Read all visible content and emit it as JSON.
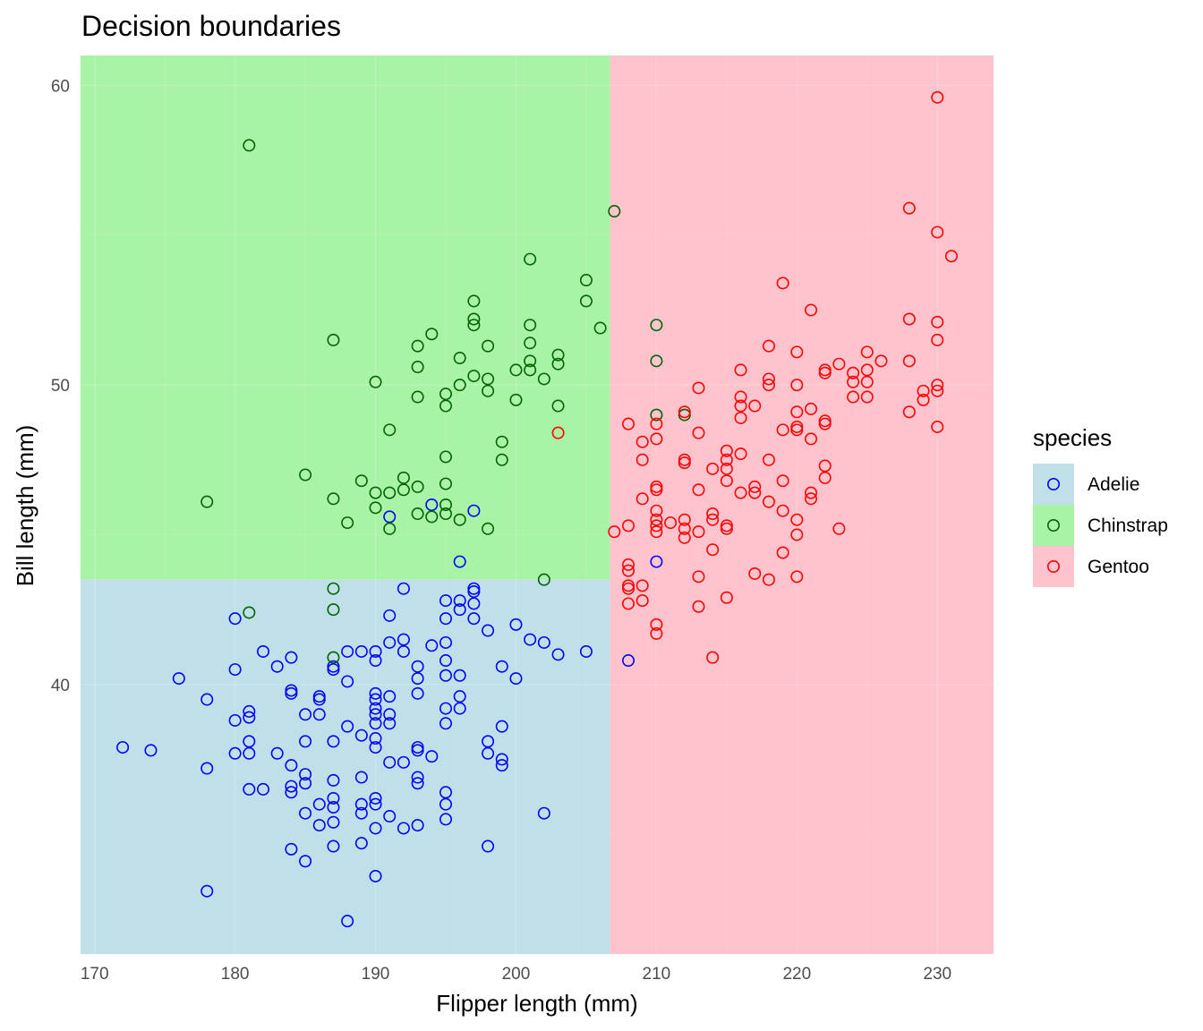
{
  "chart_data": {
    "type": "scatter",
    "title": "Decision boundaries",
    "xlabel": "Flipper length (mm)",
    "ylabel": "Bill length (mm)",
    "xlim": [
      169,
      234
    ],
    "ylim": [
      31,
      61
    ],
    "xticks": [
      170,
      180,
      190,
      200,
      210,
      220,
      230
    ],
    "yticks": [
      40,
      50,
      60
    ],
    "grid": true,
    "legend": {
      "title": "species",
      "position": "right"
    },
    "colors": {
      "Adelie": {
        "point": "#0000ff",
        "region": "#bfe0e8"
      },
      "Chinstrap": {
        "point": "#006400",
        "region": "#a9f3a6"
      },
      "Gentoo": {
        "point": "#ff0000",
        "region": "#ffc3cd"
      }
    },
    "regions": [
      {
        "species": "Chinstrap",
        "x": [
          169,
          206.7
        ],
        "y": [
          43.5,
          61
        ]
      },
      {
        "species": "Adelie",
        "x": [
          169,
          206.7
        ],
        "y": [
          31,
          43.5
        ]
      },
      {
        "species": "Gentoo",
        "x": [
          206.7,
          234
        ],
        "y": [
          31,
          61
        ]
      }
    ],
    "series": [
      {
        "name": "Adelie",
        "points": [
          [
            172,
            37.9
          ],
          [
            174,
            37.8
          ],
          [
            176,
            40.2
          ],
          [
            178,
            39.5
          ],
          [
            178,
            37.2
          ],
          [
            178,
            33.1
          ],
          [
            180,
            42.2
          ],
          [
            180,
            40.5
          ],
          [
            180,
            38.8
          ],
          [
            180,
            37.7
          ],
          [
            181,
            39.1
          ],
          [
            181,
            38.9
          ],
          [
            181,
            38.1
          ],
          [
            181,
            37.7
          ],
          [
            181,
            36.5
          ],
          [
            182,
            41.1
          ],
          [
            182,
            36.5
          ],
          [
            183,
            40.6
          ],
          [
            183,
            37.7
          ],
          [
            184,
            40.9
          ],
          [
            184,
            39.8
          ],
          [
            184,
            39.7
          ],
          [
            184,
            37.3
          ],
          [
            184,
            36.6
          ],
          [
            184,
            36.4
          ],
          [
            184,
            34.5
          ],
          [
            185,
            39.0
          ],
          [
            185,
            38.1
          ],
          [
            185,
            37.0
          ],
          [
            185,
            36.7
          ],
          [
            185,
            35.7
          ],
          [
            185,
            34.1
          ],
          [
            186,
            39.6
          ],
          [
            186,
            39.5
          ],
          [
            186,
            39.0
          ],
          [
            186,
            36.0
          ],
          [
            186,
            35.3
          ],
          [
            187,
            40.6
          ],
          [
            187,
            40.5
          ],
          [
            187,
            38.1
          ],
          [
            187,
            36.8
          ],
          [
            187,
            36.2
          ],
          [
            187,
            35.9
          ],
          [
            187,
            35.4
          ],
          [
            187,
            34.6
          ],
          [
            188,
            41.1
          ],
          [
            188,
            40.1
          ],
          [
            188,
            38.6
          ],
          [
            188,
            32.1
          ],
          [
            189,
            41.1
          ],
          [
            189,
            38.3
          ],
          [
            189,
            36.9
          ],
          [
            189,
            36.0
          ],
          [
            189,
            35.7
          ],
          [
            189,
            34.7
          ],
          [
            190,
            41.1
          ],
          [
            190,
            40.8
          ],
          [
            190,
            39.7
          ],
          [
            190,
            39.5
          ],
          [
            190,
            39.2
          ],
          [
            190,
            39.0
          ],
          [
            190,
            38.7
          ],
          [
            190,
            38.2
          ],
          [
            190,
            37.9
          ],
          [
            190,
            36.2
          ],
          [
            190,
            36.0
          ],
          [
            190,
            35.2
          ],
          [
            190,
            33.6
          ],
          [
            191,
            45.6
          ],
          [
            191,
            42.3
          ],
          [
            191,
            41.4
          ],
          [
            191,
            39.6
          ],
          [
            191,
            39.0
          ],
          [
            191,
            38.7
          ],
          [
            191,
            37.4
          ],
          [
            191,
            35.6
          ],
          [
            192,
            43.2
          ],
          [
            192,
            41.5
          ],
          [
            192,
            41.1
          ],
          [
            192,
            37.4
          ],
          [
            192,
            35.2
          ],
          [
            193,
            40.6
          ],
          [
            193,
            40.2
          ],
          [
            193,
            39.7
          ],
          [
            193,
            37.9
          ],
          [
            193,
            37.8
          ],
          [
            193,
            36.9
          ],
          [
            193,
            36.7
          ],
          [
            193,
            35.3
          ],
          [
            194,
            46.0
          ],
          [
            194,
            41.3
          ],
          [
            194,
            37.6
          ],
          [
            195,
            42.8
          ],
          [
            195,
            42.2
          ],
          [
            195,
            41.4
          ],
          [
            195,
            40.8
          ],
          [
            195,
            40.3
          ],
          [
            195,
            39.2
          ],
          [
            195,
            38.7
          ],
          [
            195,
            36.4
          ],
          [
            195,
            36.0
          ],
          [
            195,
            35.5
          ],
          [
            196,
            44.1
          ],
          [
            196,
            42.8
          ],
          [
            196,
            42.5
          ],
          [
            196,
            40.3
          ],
          [
            196,
            39.6
          ],
          [
            196,
            39.2
          ],
          [
            197,
            45.8
          ],
          [
            197,
            43.2
          ],
          [
            197,
            43.1
          ],
          [
            197,
            42.7
          ],
          [
            197,
            42.2
          ],
          [
            198,
            41.8
          ],
          [
            198,
            38.1
          ],
          [
            198,
            37.7
          ],
          [
            198,
            34.6
          ],
          [
            199,
            40.6
          ],
          [
            199,
            38.6
          ],
          [
            199,
            37.5
          ],
          [
            199,
            37.3
          ],
          [
            200,
            42.0
          ],
          [
            200,
            40.2
          ],
          [
            201,
            41.5
          ],
          [
            202,
            41.4
          ],
          [
            202,
            35.7
          ],
          [
            203,
            41.0
          ],
          [
            205,
            41.1
          ],
          [
            208,
            40.8
          ],
          [
            210,
            44.1
          ]
        ]
      },
      {
        "name": "Chinstrap",
        "points": [
          [
            178,
            46.1
          ],
          [
            181,
            58.0
          ],
          [
            181,
            42.4
          ],
          [
            185,
            47.0
          ],
          [
            187,
            51.5
          ],
          [
            187,
            46.2
          ],
          [
            187,
            43.2
          ],
          [
            187,
            42.5
          ],
          [
            187,
            40.9
          ],
          [
            188,
            45.4
          ],
          [
            189,
            46.8
          ],
          [
            190,
            50.1
          ],
          [
            190,
            46.4
          ],
          [
            190,
            45.9
          ],
          [
            191,
            48.5
          ],
          [
            191,
            46.4
          ],
          [
            191,
            45.2
          ],
          [
            192,
            46.9
          ],
          [
            192,
            46.5
          ],
          [
            193,
            51.3
          ],
          [
            193,
            50.6
          ],
          [
            193,
            49.6
          ],
          [
            193,
            46.6
          ],
          [
            193,
            45.7
          ],
          [
            194,
            51.7
          ],
          [
            194,
            45.6
          ],
          [
            195,
            49.7
          ],
          [
            195,
            49.3
          ],
          [
            195,
            47.6
          ],
          [
            195,
            46.7
          ],
          [
            195,
            46.0
          ],
          [
            195,
            45.7
          ],
          [
            196,
            50.9
          ],
          [
            196,
            50.0
          ],
          [
            196,
            45.5
          ],
          [
            197,
            52.8
          ],
          [
            197,
            52.2
          ],
          [
            197,
            52.0
          ],
          [
            197,
            50.3
          ],
          [
            198,
            51.3
          ],
          [
            198,
            50.2
          ],
          [
            198,
            49.8
          ],
          [
            198,
            45.2
          ],
          [
            199,
            48.1
          ],
          [
            199,
            47.5
          ],
          [
            200,
            50.5
          ],
          [
            200,
            49.5
          ],
          [
            201,
            54.2
          ],
          [
            201,
            52.0
          ],
          [
            201,
            51.4
          ],
          [
            201,
            50.8
          ],
          [
            201,
            50.5
          ],
          [
            202,
            50.2
          ],
          [
            202,
            43.5
          ],
          [
            203,
            51.0
          ],
          [
            203,
            50.7
          ],
          [
            203,
            49.3
          ],
          [
            205,
            53.5
          ],
          [
            205,
            52.8
          ],
          [
            206,
            51.9
          ],
          [
            207,
            55.8
          ],
          [
            210,
            52.0
          ],
          [
            210,
            50.8
          ],
          [
            210,
            49.0
          ],
          [
            212,
            49.0
          ]
        ]
      },
      {
        "name": "Gentoo",
        "points": [
          [
            203,
            48.4
          ],
          [
            207,
            45.1
          ],
          [
            208,
            48.7
          ],
          [
            208,
            45.3
          ],
          [
            208,
            44.0
          ],
          [
            208,
            43.8
          ],
          [
            208,
            43.3
          ],
          [
            208,
            43.2
          ],
          [
            208,
            42.7
          ],
          [
            209,
            48.1
          ],
          [
            209,
            47.5
          ],
          [
            209,
            46.2
          ],
          [
            209,
            43.3
          ],
          [
            209,
            42.8
          ],
          [
            210,
            48.7
          ],
          [
            210,
            48.2
          ],
          [
            210,
            46.6
          ],
          [
            210,
            46.5
          ],
          [
            210,
            45.8
          ],
          [
            210,
            45.5
          ],
          [
            210,
            45.3
          ],
          [
            210,
            45.1
          ],
          [
            210,
            42.0
          ],
          [
            210,
            41.7
          ],
          [
            211,
            45.4
          ],
          [
            212,
            49.1
          ],
          [
            212,
            47.5
          ],
          [
            212,
            47.4
          ],
          [
            212,
            45.5
          ],
          [
            212,
            45.2
          ],
          [
            212,
            44.9
          ],
          [
            213,
            49.9
          ],
          [
            213,
            48.4
          ],
          [
            213,
            46.5
          ],
          [
            213,
            45.1
          ],
          [
            213,
            43.6
          ],
          [
            213,
            42.6
          ],
          [
            214,
            47.2
          ],
          [
            214,
            45.7
          ],
          [
            214,
            45.5
          ],
          [
            214,
            44.5
          ],
          [
            214,
            40.9
          ],
          [
            215,
            47.8
          ],
          [
            215,
            47.5
          ],
          [
            215,
            47.2
          ],
          [
            215,
            46.8
          ],
          [
            215,
            45.3
          ],
          [
            215,
            45.2
          ],
          [
            215,
            42.9
          ],
          [
            216,
            50.5
          ],
          [
            216,
            49.6
          ],
          [
            216,
            49.3
          ],
          [
            216,
            48.9
          ],
          [
            216,
            47.7
          ],
          [
            216,
            46.4
          ],
          [
            217,
            49.3
          ],
          [
            217,
            46.6
          ],
          [
            217,
            46.4
          ],
          [
            217,
            43.7
          ],
          [
            218,
            51.3
          ],
          [
            218,
            50.2
          ],
          [
            218,
            50.0
          ],
          [
            218,
            47.5
          ],
          [
            218,
            46.1
          ],
          [
            218,
            43.5
          ],
          [
            219,
            53.4
          ],
          [
            219,
            48.5
          ],
          [
            219,
            46.8
          ],
          [
            219,
            45.8
          ],
          [
            219,
            44.4
          ],
          [
            220,
            51.1
          ],
          [
            220,
            50.0
          ],
          [
            220,
            49.1
          ],
          [
            220,
            48.6
          ],
          [
            220,
            48.5
          ],
          [
            220,
            45.5
          ],
          [
            220,
            45.0
          ],
          [
            220,
            43.6
          ],
          [
            221,
            52.5
          ],
          [
            221,
            49.2
          ],
          [
            221,
            48.2
          ],
          [
            221,
            46.4
          ],
          [
            221,
            46.2
          ],
          [
            222,
            50.5
          ],
          [
            222,
            50.4
          ],
          [
            222,
            48.8
          ],
          [
            222,
            48.7
          ],
          [
            222,
            47.3
          ],
          [
            222,
            46.9
          ],
          [
            223,
            50.7
          ],
          [
            223,
            45.2
          ],
          [
            224,
            50.4
          ],
          [
            224,
            50.1
          ],
          [
            224,
            49.6
          ],
          [
            225,
            51.1
          ],
          [
            225,
            50.5
          ],
          [
            225,
            50.1
          ],
          [
            225,
            49.6
          ],
          [
            226,
            50.8
          ],
          [
            228,
            55.9
          ],
          [
            228,
            52.2
          ],
          [
            228,
            50.8
          ],
          [
            228,
            49.1
          ],
          [
            229,
            49.8
          ],
          [
            229,
            49.5
          ],
          [
            230,
            59.6
          ],
          [
            230,
            55.1
          ],
          [
            230,
            52.1
          ],
          [
            230,
            51.5
          ],
          [
            230,
            50.0
          ],
          [
            230,
            49.8
          ],
          [
            230,
            48.6
          ],
          [
            231,
            54.3
          ]
        ]
      }
    ]
  }
}
